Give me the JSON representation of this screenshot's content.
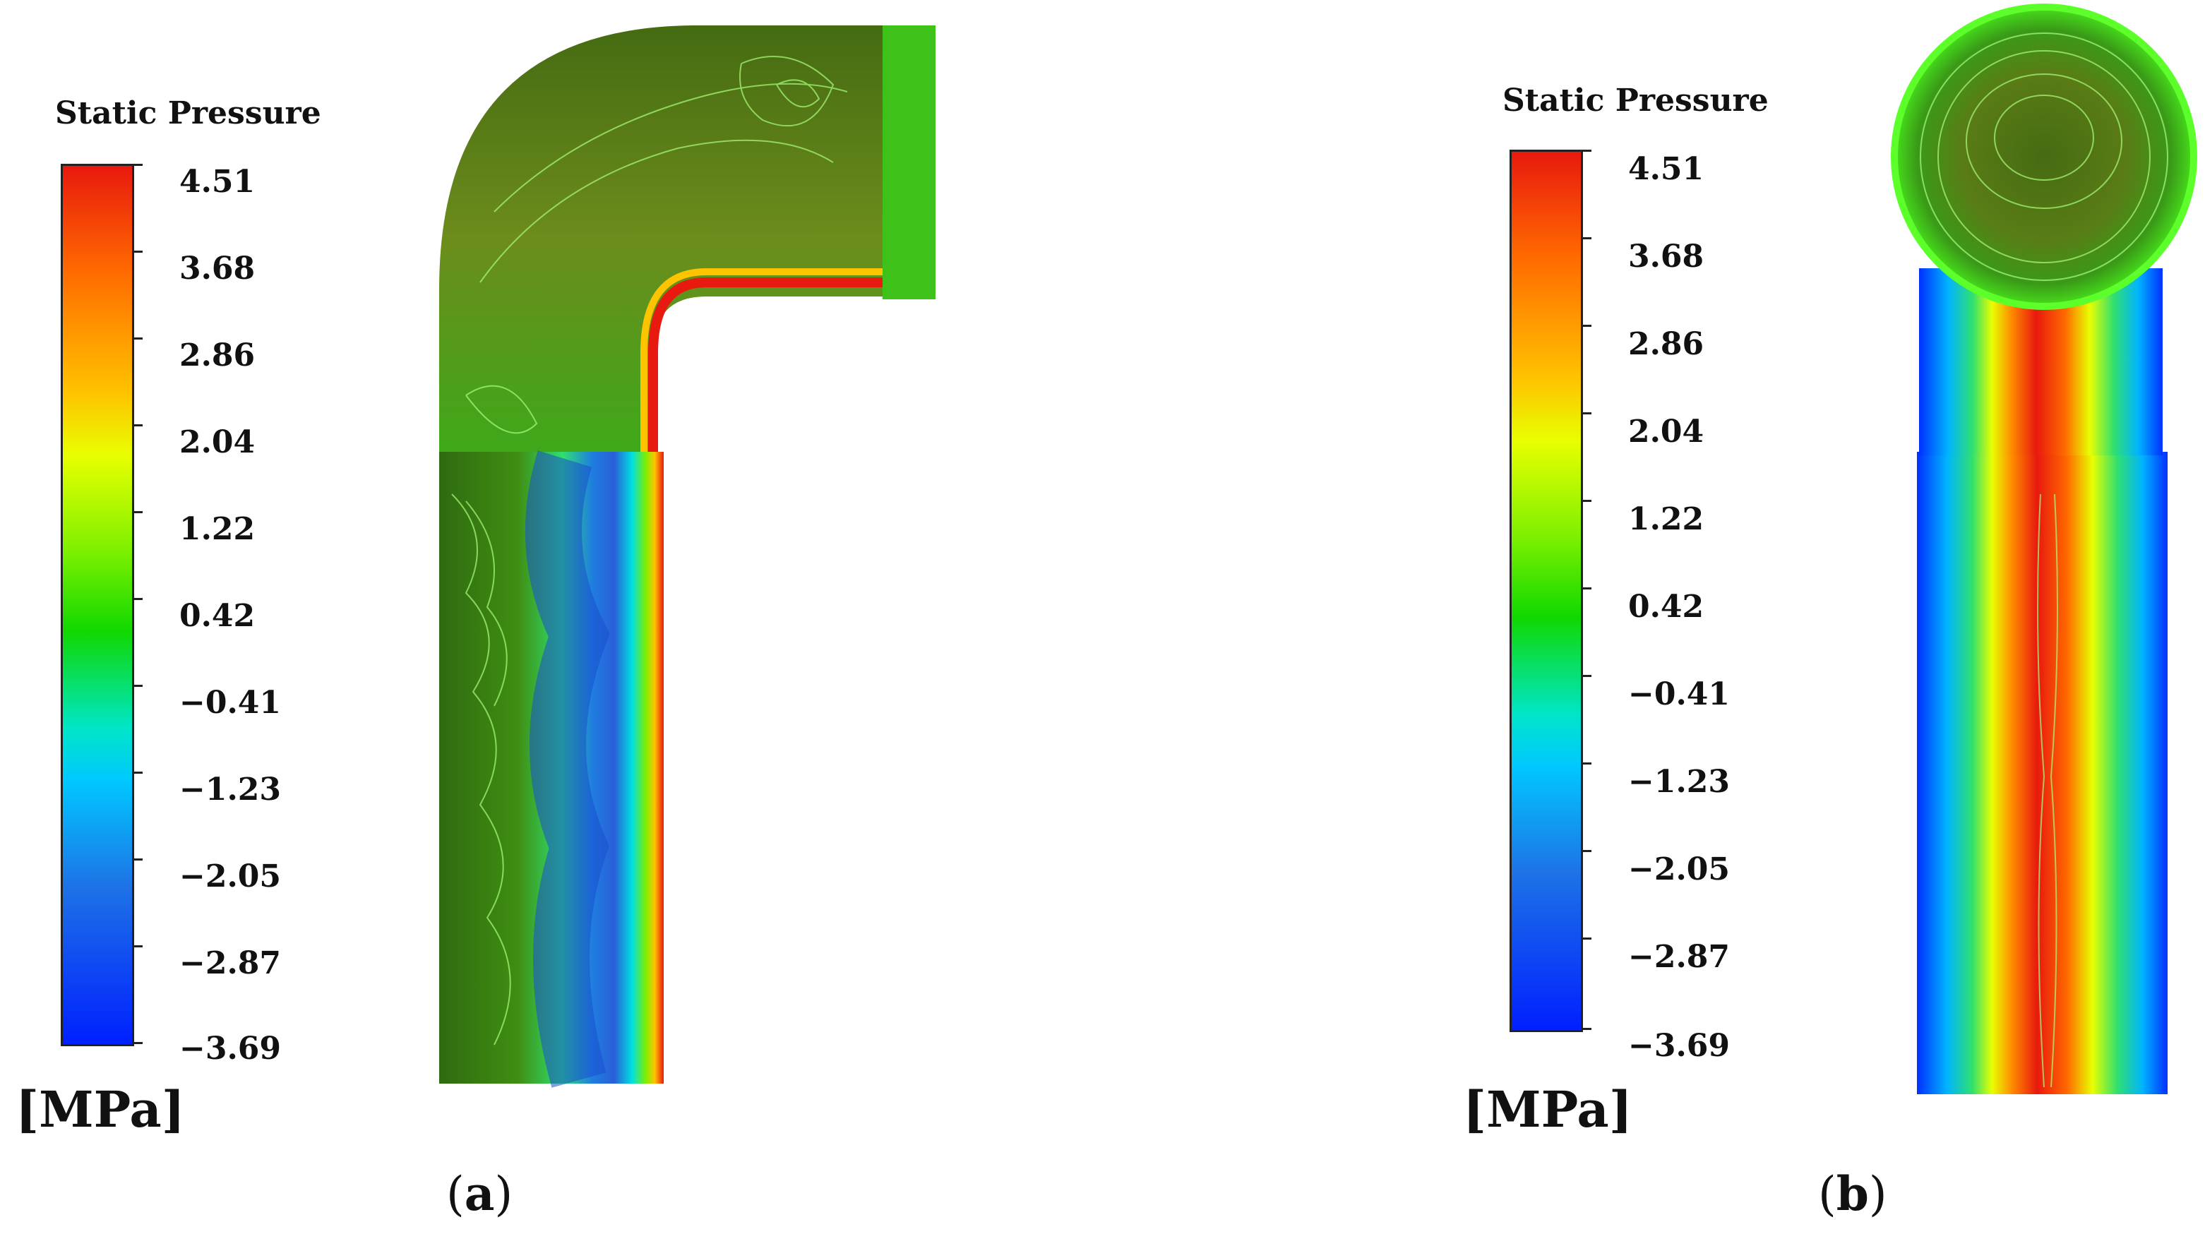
{
  "figure": {
    "legend_a": {
      "title": "Static Pressure",
      "unit": "[MPa]",
      "ticks": [
        "4.51",
        "3.68",
        "2.86",
        "2.04",
        "1.22",
        "0.42",
        "−0.41",
        "−1.23",
        "−2.05",
        "−2.87",
        "−3.69"
      ]
    },
    "legend_b": {
      "title": "Static Pressure",
      "unit": "[MPa]",
      "ticks": [
        "4.51",
        "3.68",
        "2.86",
        "2.04",
        "1.22",
        "0.42",
        "−0.41",
        "−1.23",
        "−2.05",
        "−2.87",
        "−3.69"
      ]
    },
    "captions": {
      "a": {
        "open": "(",
        "letter": "a",
        "close": ")"
      },
      "b": {
        "open": "(",
        "letter": "b",
        "close": ")"
      }
    },
    "colorscale": {
      "max_color": "#e8190e",
      "mid_color": "#10d800",
      "min_color": "#0020ff"
    }
  }
}
